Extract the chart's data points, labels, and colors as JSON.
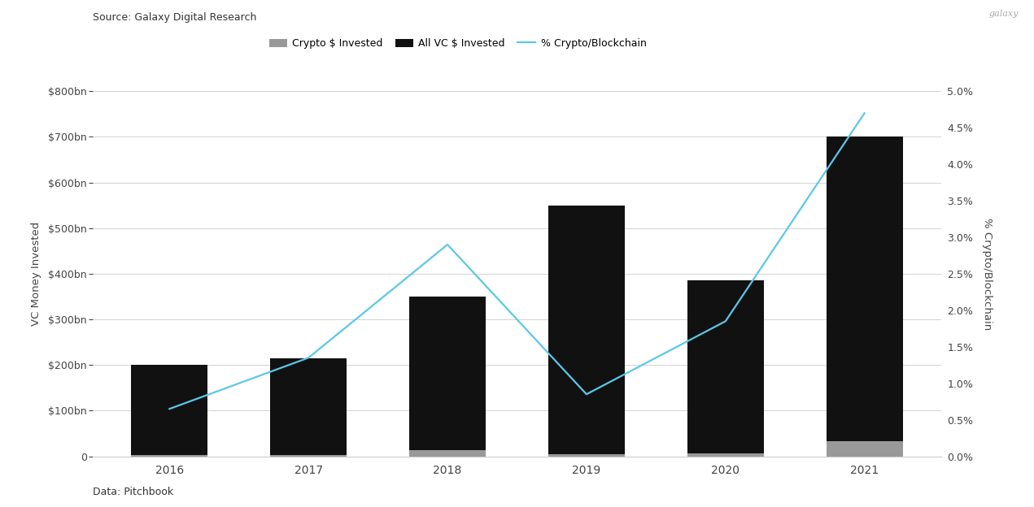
{
  "years": [
    "2016",
    "2017",
    "2018",
    "2019",
    "2020",
    "2021"
  ],
  "all_vc_invested": [
    200,
    215,
    350,
    550,
    385,
    700
  ],
  "crypto_invested": [
    2,
    3,
    13,
    5,
    7,
    33
  ],
  "pct_crypto": [
    0.65,
    1.35,
    2.9,
    0.85,
    1.85,
    4.7
  ],
  "bar_color_all_vc": "#111111",
  "bar_color_crypto": "#999999",
  "line_color": "#5bc8e8",
  "background_color": "#ffffff",
  "source_text": "Source: Galaxy Digital Research",
  "data_text": "Data: Pitchbook",
  "galaxy_text": "galaxy",
  "ylabel_left": "VC Money Invested",
  "ylabel_right": "% Crypto/Blockchain",
  "ylim_left": [
    0,
    800
  ],
  "ylim_right": [
    0.0,
    5.0
  ],
  "yticks_left": [
    0,
    100,
    200,
    300,
    400,
    500,
    600,
    700,
    800
  ],
  "ytick_labels_left": [
    "0",
    "$100bn",
    "$200bn",
    "$300bn",
    "$400bn",
    "$500bn",
    "$600bn",
    "$700bn",
    "$800bn"
  ],
  "yticks_right": [
    0.0,
    0.5,
    1.0,
    1.5,
    2.0,
    2.5,
    3.0,
    3.5,
    4.0,
    4.5,
    5.0
  ],
  "ytick_labels_right": [
    "0.0%",
    "0.5%",
    "1.0%",
    "1.5%",
    "2.0%",
    "2.5%",
    "3.0%",
    "3.5%",
    "4.0%",
    "4.5%",
    "5.0%"
  ],
  "legend_labels": [
    "Crypto $ Invested",
    "All VC $ Invested",
    "% Crypto/Blockchain"
  ],
  "bar_width": 0.55,
  "crypto_bar_width": 0.55
}
